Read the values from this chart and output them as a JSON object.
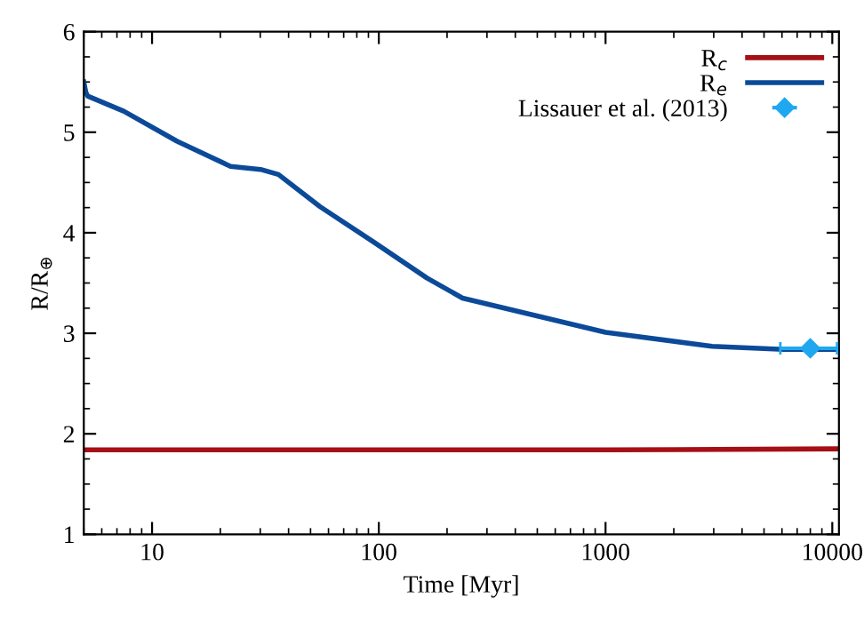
{
  "chart_data": {
    "type": "line",
    "xlabel": "Time [Myr]",
    "ylabel": "R/R$_{⊕}$",
    "log": "x",
    "xlim": [
      5,
      10700
    ],
    "xticks": [
      10,
      100,
      1000,
      10000
    ],
    "ylim": [
      1,
      6
    ],
    "yticks": [
      1,
      2,
      3,
      4,
      5,
      6
    ],
    "grid": false,
    "legend": "top right",
    "series": [
      {
        "name": "R$_{c}$",
        "color": "#a50f15",
        "x": [
          5,
          100,
          1000,
          10700
        ],
        "values": [
          1.84,
          1.84,
          1.84,
          1.85
        ]
      },
      {
        "name": "R$_{e}$",
        "color": "#0c4a99",
        "x": [
          5,
          5.1,
          5.2,
          7.5,
          12.9,
          22.2,
          30.1,
          36.1,
          55,
          94.6,
          163,
          234,
          484,
          1000,
          2950,
          6120,
          10570
        ],
        "values": [
          5.5,
          5.4,
          5.36,
          5.21,
          4.91,
          4.66,
          4.63,
          4.58,
          4.26,
          3.91,
          3.55,
          3.35,
          3.18,
          3.01,
          2.87,
          2.84,
          2.84
        ]
      },
      {
        "name": "Lissauer et al. (2013)",
        "type": "scatter",
        "marker": "diamond",
        "color": "#1fa8f0",
        "x": [
          8000
        ],
        "values": [
          2.85
        ],
        "xerrors": [
          [
            5900,
            10500
          ]
        ]
      }
    ]
  }
}
